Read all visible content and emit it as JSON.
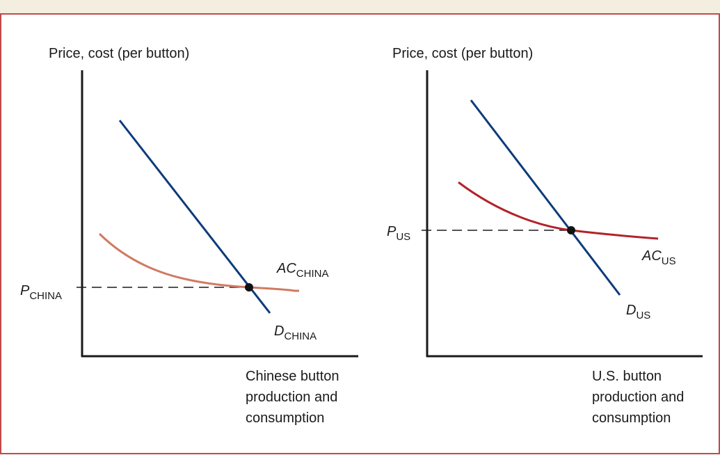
{
  "colors": {
    "top_band": "#f4eee0",
    "border": "#c0494a",
    "axis": "#1a1a1a",
    "demand": "#0d3b7a",
    "ac_china": "#d07a62",
    "ac_us": "#b2232a",
    "dashed": "#1a1a1a"
  },
  "panels": {
    "china": {
      "y_axis_title": "Price, cost (per button)",
      "price_label": {
        "main": "P",
        "sub": "CHINA"
      },
      "ac_label": {
        "main": "AC",
        "sub": "CHINA"
      },
      "demand_label": {
        "main": "D",
        "sub": "CHINA"
      },
      "x_caption": [
        "Chinese button",
        "production and",
        "consumption"
      ]
    },
    "us": {
      "y_axis_title": "Price, cost (per button)",
      "price_label": {
        "main": "P",
        "sub": "US"
      },
      "ac_label": {
        "main": "AC",
        "sub": "US"
      },
      "demand_label": {
        "main": "D",
        "sub": "US"
      },
      "x_caption": [
        "U.S. button",
        "production and",
        "consumption"
      ]
    }
  }
}
